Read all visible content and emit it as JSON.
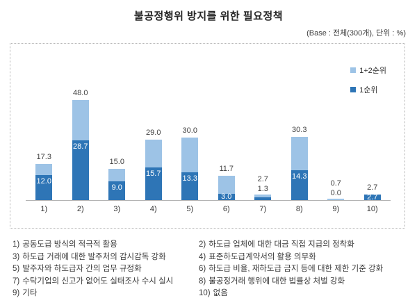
{
  "title": "불공정행위 방지를 위한 필요정책",
  "base_note": "(Base : 전체(300개), 단위 : %)",
  "colors": {
    "rank12_light_blue": "#9DC3E6",
    "rank1_dark_blue": "#2E75B6",
    "axis_gray": "#B3B3B3",
    "label_gray": "#404040"
  },
  "legend": {
    "items": [
      {
        "label": "1+2순위",
        "color": "#9DC3E6"
      },
      {
        "label": "1순위",
        "color": "#2E75B6"
      }
    ]
  },
  "chart_data": {
    "type": "bar",
    "subtype": "stacked-overlay-column",
    "title": "불공정행위 방지를 위한 필요정책",
    "categories": [
      "1)",
      "2)",
      "3)",
      "4)",
      "5)",
      "6)",
      "7)",
      "8)",
      "9)",
      "10)"
    ],
    "series": [
      {
        "name": "1+2순위",
        "color": "#9DC3E6",
        "values": [
          17.3,
          48.0,
          15.0,
          29.0,
          30.0,
          11.7,
          2.7,
          30.3,
          0.7,
          2.7
        ]
      },
      {
        "name": "1순위",
        "color": "#2E75B6",
        "values": [
          12.0,
          28.7,
          9.0,
          15.7,
          13.3,
          3.0,
          1.3,
          14.3,
          0.0,
          2.7
        ]
      }
    ],
    "unit": "%",
    "ylim": [
      0,
      50
    ],
    "grid": false,
    "legend_position": "top-right",
    "value_labels": true
  },
  "footnotes": [
    {
      "num": "1)",
      "text": "공동도급 방식의 적극적 활용"
    },
    {
      "num": "2)",
      "text": "하도급 업체에 대한 대금 직접 지급의 정착화"
    },
    {
      "num": "3)",
      "text": "하도급 거래에 대한 발주처의 감시감독 강화"
    },
    {
      "num": "4)",
      "text": "표준하도급계약서의 활용 의무화"
    },
    {
      "num": "5)",
      "text": "발주자와 하도급자 간의 업무 규정화"
    },
    {
      "num": "6)",
      "text": "하도급 비율, 재하도급 금지 등에 대한 제한 기준 강화"
    },
    {
      "num": "7)",
      "text": "수탁기업의 신고가 없어도 실태조사 수시 실시"
    },
    {
      "num": "8)",
      "text": "불공정거래 행위에 대한 법률상 처벌 강화"
    },
    {
      "num": "9)",
      "text": "기타"
    },
    {
      "num": "10)",
      "text": "없음"
    }
  ]
}
